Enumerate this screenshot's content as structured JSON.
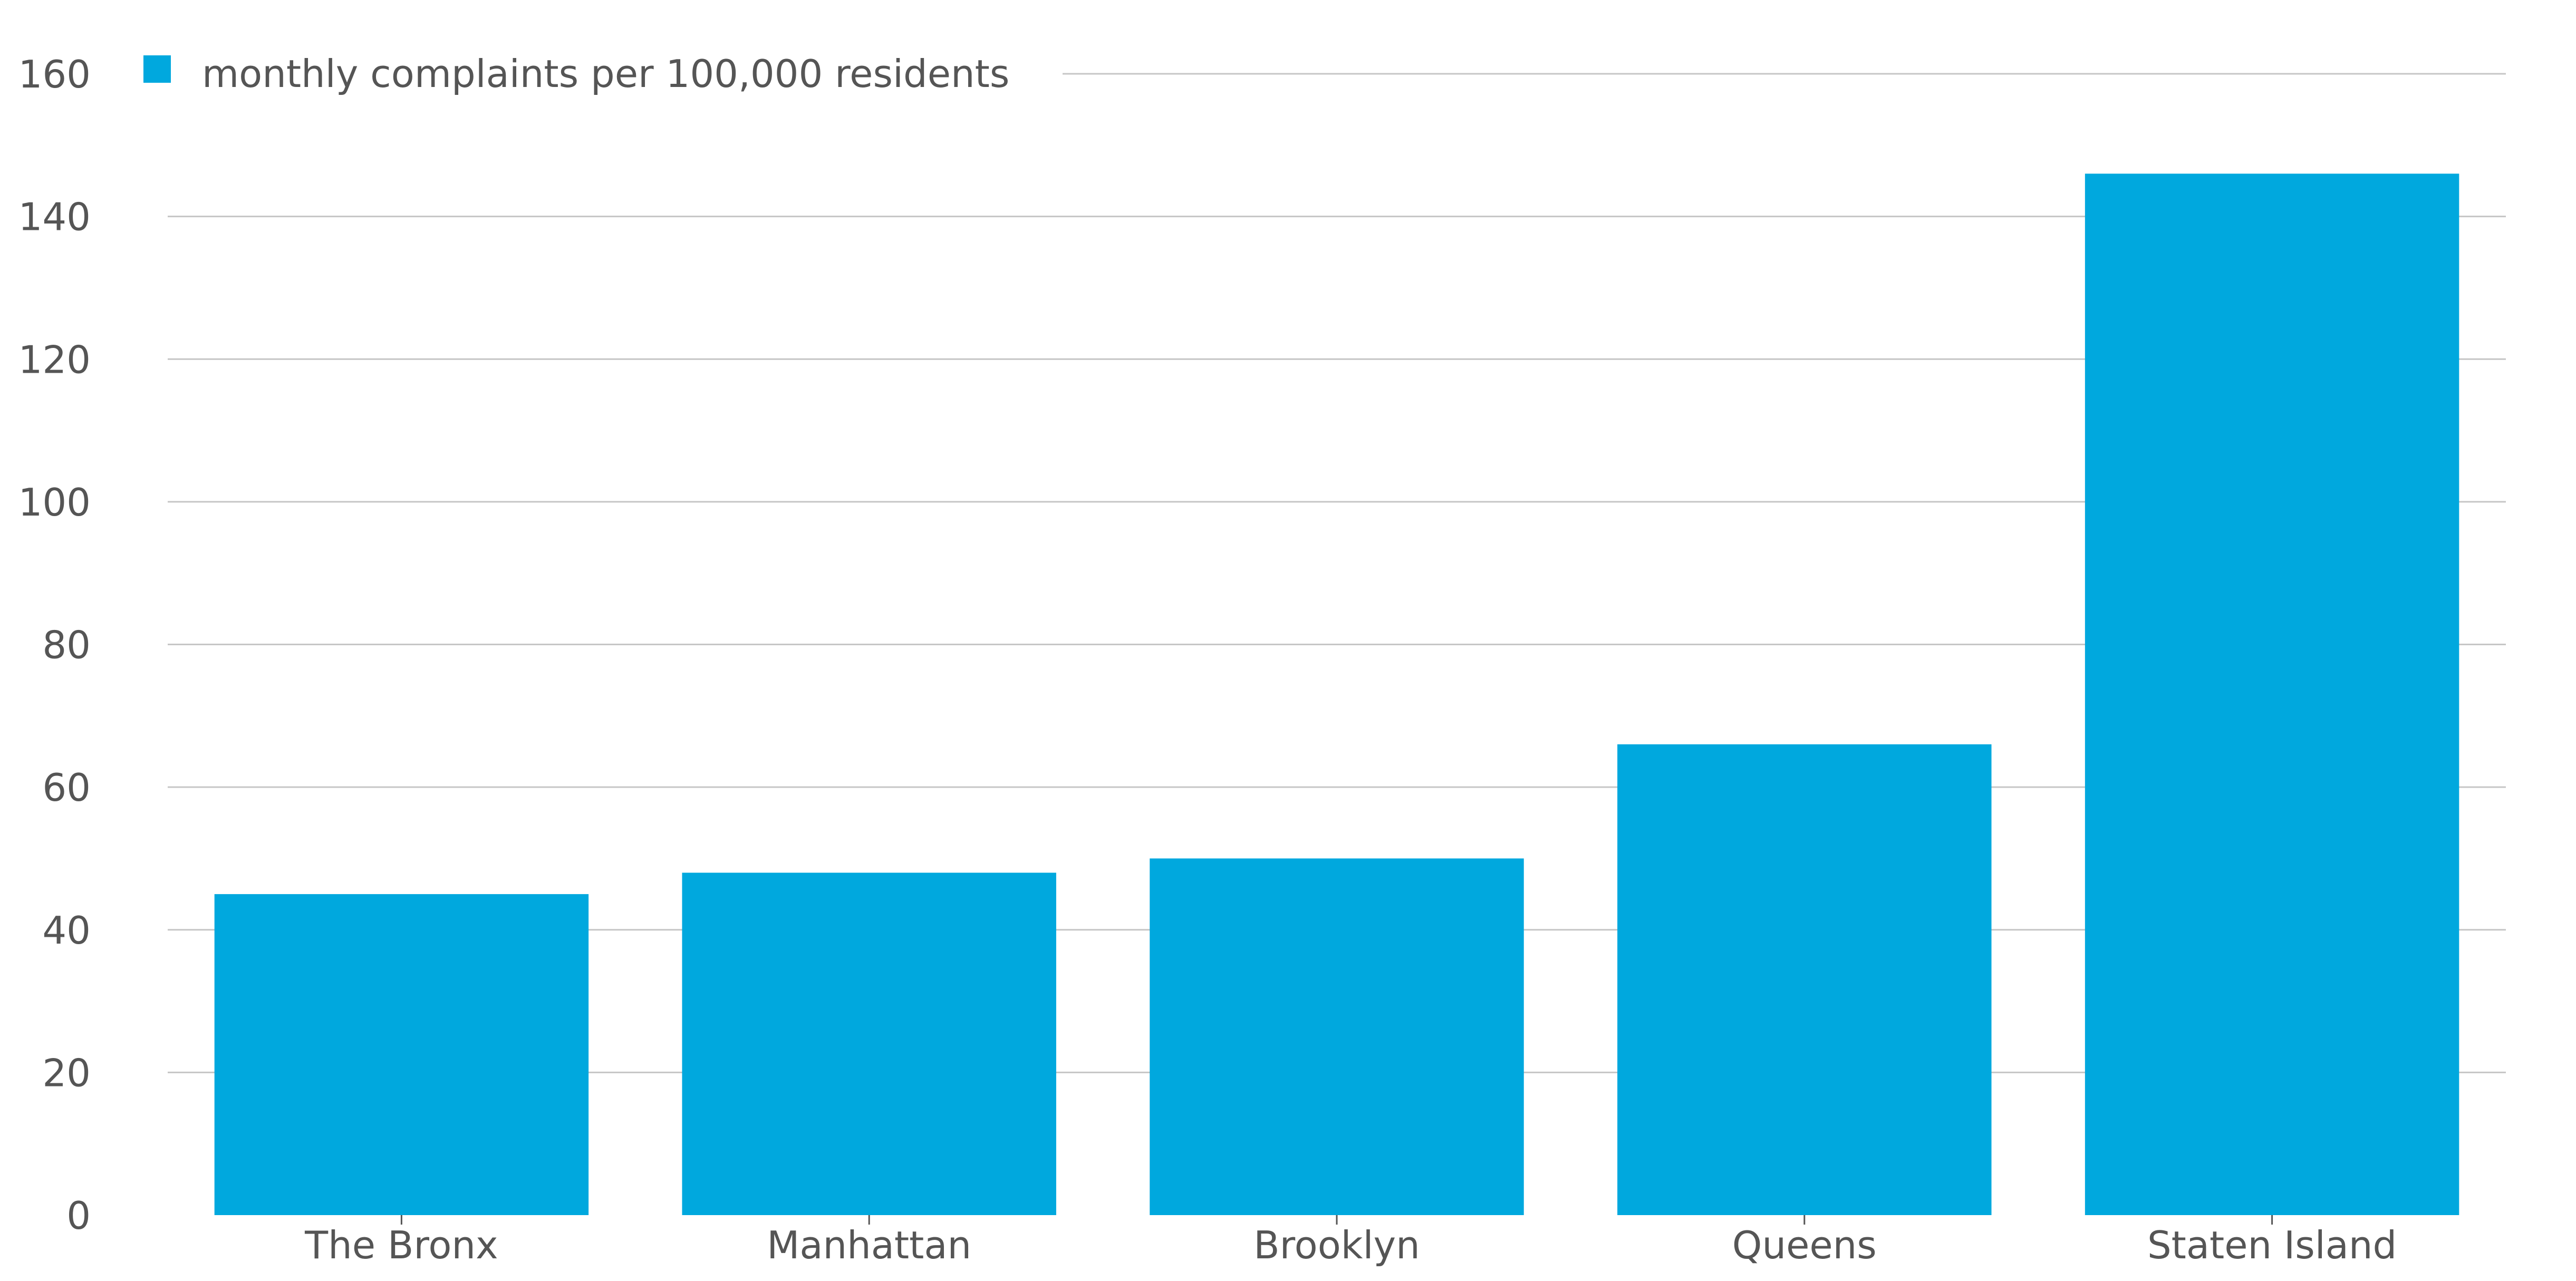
{
  "chart_data": {
    "type": "bar",
    "categories": [
      "The Bronx",
      "Manhattan",
      "Brooklyn",
      "Queens",
      "Staten Island"
    ],
    "series": [
      {
        "name": "monthly complaints per 100,000 residents",
        "values": [
          45,
          48,
          50,
          66,
          146
        ],
        "color": "#00a8de"
      }
    ],
    "title": "",
    "xlabel": "",
    "ylabel": "",
    "ylim": [
      0,
      160
    ],
    "yticks": [
      0,
      20,
      40,
      60,
      80,
      100,
      120,
      140,
      160
    ],
    "grid": true,
    "legend_position": "top-left",
    "colors": {
      "grid": "#c6c6c6",
      "text": "#555555",
      "background": "#ffffff"
    }
  }
}
